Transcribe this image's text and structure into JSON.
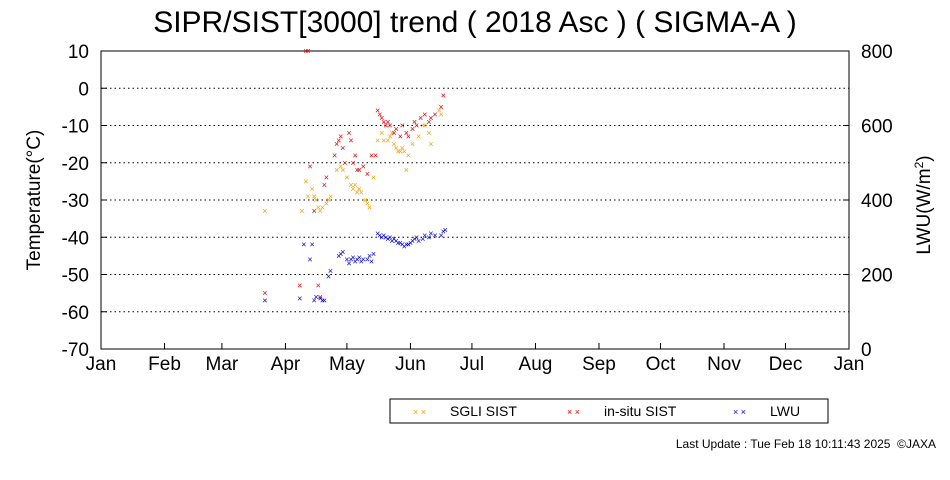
{
  "chart_data": {
    "type": "scatter",
    "title": "SIPR/SIST[3000] trend ( 2018 Asc ) ( SIGMA-A )",
    "ylabel": "Temperature(°C)",
    "y2label_main": "LWU(W/m",
    "y2label_sup": "2",
    "y2label_end": ")",
    "x_tick_labels": [
      "Jan",
      "Feb",
      "Mar",
      "Apr",
      "May",
      "Jun",
      "Jul",
      "Aug",
      "Sep",
      "Oct",
      "Nov",
      "Dec",
      "Jan"
    ],
    "ylim": [
      -70,
      10
    ],
    "y_ticks": [
      "10",
      "0",
      "-10",
      "-20",
      "-30",
      "-40",
      "-50",
      "-60",
      "-70"
    ],
    "y2lim": [
      0,
      800
    ],
    "y2_ticks": [
      "800",
      "600",
      "400",
      "200",
      "0"
    ],
    "grid": "horizontal dotted",
    "legend_position": "bottom-center",
    "marker": "×",
    "series": [
      {
        "name": "SGLI SIST",
        "color": "#f5a000",
        "axis": "left",
        "x_day_of_year": [
          80,
          98,
          100,
          101,
          103,
          104,
          105,
          106,
          107,
          108,
          110,
          111,
          112,
          115,
          117,
          118,
          120,
          122,
          123,
          124,
          125,
          126,
          127,
          129,
          130,
          131,
          133,
          135,
          137,
          138,
          140,
          141,
          142,
          143,
          144,
          145,
          146,
          147,
          148,
          149,
          150,
          152,
          155,
          157,
          158,
          160,
          161,
          165,
          166
        ],
        "y": [
          -33,
          -33,
          -25,
          -29,
          -27,
          -29,
          -30,
          -32,
          -33,
          -32,
          -31,
          -30,
          -29,
          -22,
          -21,
          -22,
          -24,
          -26,
          -27,
          -26,
          -28,
          -27,
          -28,
          -30,
          -31,
          -32,
          -24,
          -14,
          -12,
          -14,
          -14,
          -13,
          -12,
          -15,
          -16,
          -17,
          -17,
          -16,
          -17,
          -22,
          -18,
          -15,
          -13,
          -10,
          -10,
          -12,
          -15,
          -6,
          -7
        ]
      },
      {
        "name": "in-situ SIST",
        "color": "#e00000",
        "axis": "left",
        "x_day_of_year": [
          80,
          97,
          100,
          101,
          102,
          104,
          106,
          107,
          109,
          110,
          114,
          115,
          116,
          117,
          118,
          119,
          121,
          122,
          123,
          124,
          125,
          126,
          128,
          130,
          132,
          134,
          135,
          136,
          137,
          138,
          139,
          140,
          141,
          143,
          144,
          146,
          147,
          149,
          150,
          152,
          153,
          154,
          156,
          158,
          160,
          161,
          163,
          166,
          167
        ],
        "y": [
          -55,
          -53,
          10,
          10,
          -21,
          -33,
          -53,
          -56,
          -26,
          -24,
          -18,
          -15,
          -14,
          -13,
          -16,
          -20,
          -12,
          -14,
          -20,
          -18,
          -22,
          -22,
          -21,
          -23,
          -18,
          -18,
          -6,
          -7,
          -8,
          -9,
          -10,
          -9,
          -10,
          -12,
          -11,
          -13,
          -10,
          -12,
          -13,
          -11,
          -9,
          -10,
          -8,
          -7,
          -9,
          -8,
          -7,
          -5,
          -2
        ]
      },
      {
        "name": "LWU",
        "color": "#0000d0",
        "axis": "right",
        "x_day_of_year": [
          80,
          97,
          99,
          102,
          103,
          104,
          105,
          107,
          108,
          109,
          111,
          112,
          116,
          117,
          118,
          120,
          121,
          122,
          123,
          124,
          125,
          126,
          127,
          128,
          130,
          131,
          132,
          133,
          135,
          136,
          137,
          138,
          139,
          140,
          141,
          142,
          143,
          144,
          145,
          146,
          147,
          148,
          149,
          150,
          151,
          152,
          153,
          154,
          155,
          157,
          158,
          160,
          161,
          163,
          166,
          167,
          168
        ],
        "y": [
          130,
          135,
          280,
          240,
          280,
          130,
          140,
          135,
          130,
          130,
          195,
          210,
          250,
          255,
          260,
          240,
          230,
          240,
          245,
          235,
          240,
          245,
          235,
          240,
          240,
          250,
          235,
          255,
          310,
          305,
          300,
          305,
          300,
          295,
          300,
          290,
          295,
          290,
          285,
          285,
          280,
          275,
          280,
          280,
          285,
          290,
          295,
          300,
          290,
          295,
          305,
          300,
          310,
          305,
          305,
          315,
          320
        ]
      }
    ]
  },
  "footer": {
    "last_update": "Last Update : Tue Feb 18 10:11:43 2025  ©JAXA"
  }
}
